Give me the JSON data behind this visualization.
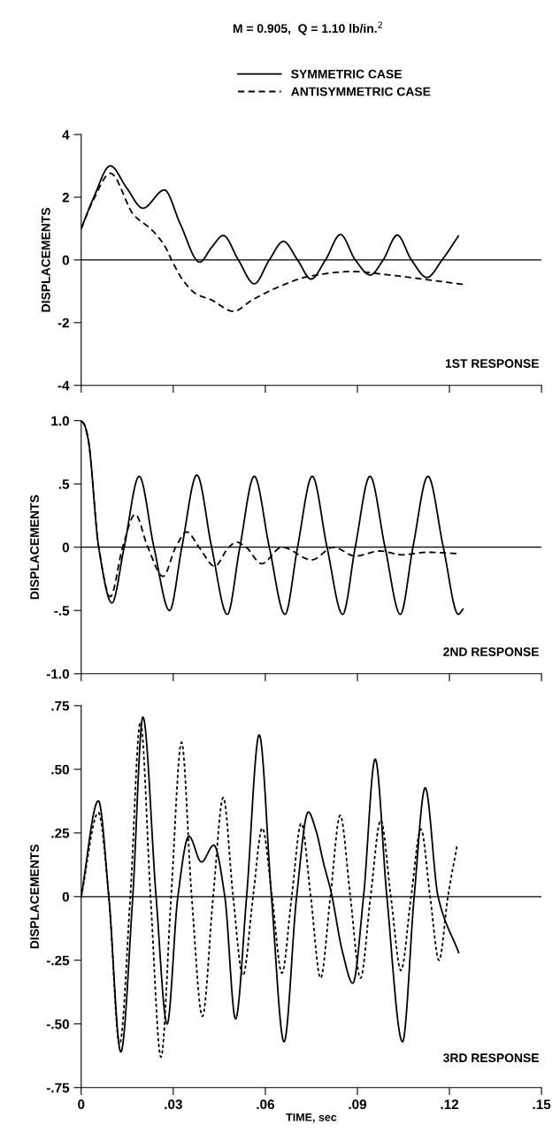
{
  "chart_data": [
    {
      "type": "line",
      "title": "M = 0.905,  Q = 1.10 lb/in.$^{2}$",
      "ylabel": "DISPLACEMENTS",
      "annotations": [
        "1ST RESPONSE"
      ],
      "legend": "top",
      "tick_labels": "y",
      "xlim": [
        0,
        0.15
      ],
      "xticks": [
        {
          "value": 0,
          "label": null
        },
        {
          "value": 0.03,
          "label": null
        },
        {
          "value": 0.06,
          "label": null
        },
        {
          "value": 0.09,
          "label": null
        },
        {
          "value": 0.12,
          "label": null
        },
        {
          "value": 0.15,
          "label": null
        }
      ],
      "ylim": [
        -4,
        4
      ],
      "yticks": [
        -4,
        -2,
        0,
        2,
        4
      ],
      "ref_lines": [
        {
          "axis": "y",
          "value": 0,
          "color": "#000000"
        }
      ],
      "series": [
        {
          "name": "SYMMETRIC CASE",
          "color": "#000000",
          "line_style": "solid",
          "x": [
            0,
            0.0039,
            0.0095,
            0.0148,
            0.0201,
            0.0271,
            0.0323,
            0.0386,
            0.0425,
            0.0463,
            0.0512,
            0.0564,
            0.0613,
            0.0659,
            0.0705,
            0.0749,
            0.0796,
            0.0845,
            0.0893,
            0.0942,
            0.0984,
            0.103,
            0.1076,
            0.1127,
            0.1176,
            0.1229
          ],
          "values": [
            1.0,
            1.95,
            3.0,
            2.3,
            1.65,
            2.23,
            1.14,
            -0.07,
            0.4,
            0.78,
            0,
            -0.76,
            0,
            0.59,
            0,
            -0.61,
            0,
            0.81,
            0,
            -0.48,
            0,
            0.79,
            0,
            -0.56,
            0,
            0.76
          ]
        },
        {
          "name": "ANTISYMMETRIC CASE",
          "color": "#000000",
          "line_style": "dashed",
          "x": [
            0,
            0.0039,
            0.0095,
            0.0171,
            0.0232,
            0.0273,
            0.0298,
            0.0334,
            0.0374,
            0.0425,
            0.0496,
            0.0557,
            0.0639,
            0.074,
            0.0883,
            0.0995,
            0.1127,
            0.1244
          ],
          "values": [
            1.0,
            1.9,
            2.76,
            1.44,
            0.94,
            0.43,
            -0.07,
            -0.68,
            -1.08,
            -1.28,
            -1.64,
            -1.28,
            -0.88,
            -0.53,
            -0.37,
            -0.47,
            -0.63,
            -0.78
          ]
        }
      ]
    },
    {
      "type": "line",
      "ylabel": "DISPLACEMENTS",
      "annotations": [
        "2ND RESPONSE"
      ],
      "tick_labels": "y",
      "xlim": [
        0,
        0.15
      ],
      "xticks": [
        {
          "value": 0,
          "label": null
        },
        {
          "value": 0.03,
          "label": null
        },
        {
          "value": 0.06,
          "label": null
        },
        {
          "value": 0.09,
          "label": null
        },
        {
          "value": 0.12,
          "label": null
        },
        {
          "value": 0.15,
          "label": null
        }
      ],
      "ylim": [
        -1.0,
        1.0
      ],
      "yticks": [
        {
          "value": -1.0,
          "label": "-1.0"
        },
        {
          "value": -0.5,
          "label": "-.5"
        },
        0,
        {
          "value": 0.5,
          "label": ".5"
        },
        {
          "value": 1.0,
          "label": "1.0"
        }
      ],
      "ref_lines": [
        {
          "axis": "y",
          "value": 0,
          "color": "#000000"
        }
      ],
      "series": [
        {
          "color": "#000000",
          "line_style": "solid",
          "x": [
            0,
            0.001,
            0.0023,
            0.0057,
            0.01,
            0.014,
            0.0189,
            0.0237,
            0.0288,
            0.0328,
            0.0377,
            0.0425,
            0.0476,
            0.0517,
            0.0564,
            0.0613,
            0.0664,
            0.0705,
            0.0753,
            0.0801,
            0.0852,
            0.0893,
            0.0941,
            0.099,
            0.104,
            0.1081,
            0.113,
            0.118,
            0.1229,
            0.1244
          ],
          "values": [
            1.0,
            0.97,
            0.85,
            0,
            -0.44,
            0,
            0.56,
            0,
            -0.5,
            0,
            0.57,
            0,
            -0.53,
            0,
            0.56,
            0,
            -0.53,
            0,
            0.56,
            0,
            -0.53,
            0,
            0.56,
            0,
            -0.53,
            0,
            0.56,
            0,
            -0.53,
            -0.49
          ]
        },
        {
          "color": "#000000",
          "line_style": "dashed",
          "x": [
            0,
            0.001,
            0.0023,
            0.0057,
            0.0095,
            0.0135,
            0.0176,
            0.0217,
            0.0267,
            0.0308,
            0.0344,
            0.0384,
            0.0435,
            0.0481,
            0.0506,
            0.0537,
            0.0588,
            0.0654,
            0.0751,
            0.0822,
            0.0893,
            0.0974,
            0.1045,
            0.1127,
            0.1224
          ],
          "values": [
            1.0,
            0.97,
            0.85,
            0,
            -0.39,
            0,
            0.26,
            0,
            -0.23,
            0,
            0.12,
            0,
            -0.15,
            0,
            0.04,
            0,
            -0.13,
            0,
            -0.1,
            0,
            -0.07,
            -0.03,
            -0.06,
            -0.04,
            -0.05
          ]
        }
      ]
    },
    {
      "type": "line",
      "xlabel": "TIME, sec",
      "ylabel": "DISPLACEMENTS",
      "annotations": [
        "3RD RESPONSE"
      ],
      "xlim": [
        0,
        0.15
      ],
      "xticks": [
        0,
        {
          "value": 0.03,
          "label": ".03"
        },
        {
          "value": 0.06,
          "label": ".06"
        },
        {
          "value": 0.09,
          "label": ".09"
        },
        {
          "value": 0.12,
          "label": ".12"
        },
        {
          "value": 0.15,
          "label": ".15"
        }
      ],
      "ylim": [
        -0.75,
        0.75
      ],
      "yticks": [
        {
          "value": -0.75,
          "label": "-.75"
        },
        {
          "value": -0.5,
          "label": "-.50"
        },
        {
          "value": -0.25,
          "label": "-.25"
        },
        0,
        {
          "value": 0.25,
          "label": ".25"
        },
        {
          "value": 0.5,
          "label": ".50"
        },
        {
          "value": 0.75,
          "label": ".75"
        }
      ],
      "ref_lines": [
        {
          "axis": "y",
          "value": 0,
          "color": "#000000"
        }
      ],
      "series": [
        {
          "color": "#000000",
          "line_style": "solid",
          "x": [
            0,
            0.0056,
            0.009,
            0.0129,
            0.0168,
            0.0201,
            0.0244,
            0.028,
            0.0315,
            0.0351,
            0.0392,
            0.0432,
            0.0468,
            0.0503,
            0.0539,
            0.058,
            0.062,
            0.0661,
            0.0702,
            0.074,
            0.0765,
            0.079,
            0.0814,
            0.0852,
            0.0885,
            0.092,
            0.0958,
            0.0996,
            0.1047,
            0.1085,
            0.1121,
            0.1163,
            0.123
          ],
          "values": [
            0,
            0.376,
            0,
            -0.61,
            0,
            0.705,
            0,
            -0.5,
            0,
            0.237,
            0.136,
            0.202,
            0,
            -0.48,
            0,
            0.635,
            0,
            -0.57,
            0,
            0.332,
            0.26,
            0.13,
            0.02,
            -0.22,
            -0.34,
            0,
            0.54,
            0,
            -0.57,
            0,
            0.427,
            0,
            -0.22
          ]
        },
        {
          "color": "#000000",
          "line_style": "dotted",
          "x": [
            0,
            0.0056,
            0.009,
            0.0125,
            0.016,
            0.0193,
            0.0226,
            0.026,
            0.0293,
            0.0327,
            0.036,
            0.0395,
            0.043,
            0.0463,
            0.0495,
            0.0527,
            0.056,
            0.059,
            0.0622,
            0.0654,
            0.0686,
            0.0717,
            0.0748,
            0.078,
            0.0812,
            0.0844,
            0.0877,
            0.091,
            0.0943,
            0.0976,
            0.1009,
            0.1042,
            0.1075,
            0.1107,
            0.1137,
            0.1166,
            0.1195,
            0.1225
          ],
          "values": [
            0,
            0.33,
            0,
            -0.58,
            0,
            0.686,
            0,
            -0.63,
            0,
            0.606,
            0,
            -0.47,
            0,
            0.389,
            0,
            -0.31,
            0,
            0.269,
            0,
            -0.3,
            0,
            0.288,
            0,
            -0.32,
            0,
            0.319,
            0,
            -0.32,
            0,
            0.3,
            0,
            -0.29,
            0,
            0.265,
            0,
            -0.25,
            0,
            0.202
          ]
        }
      ]
    }
  ]
}
